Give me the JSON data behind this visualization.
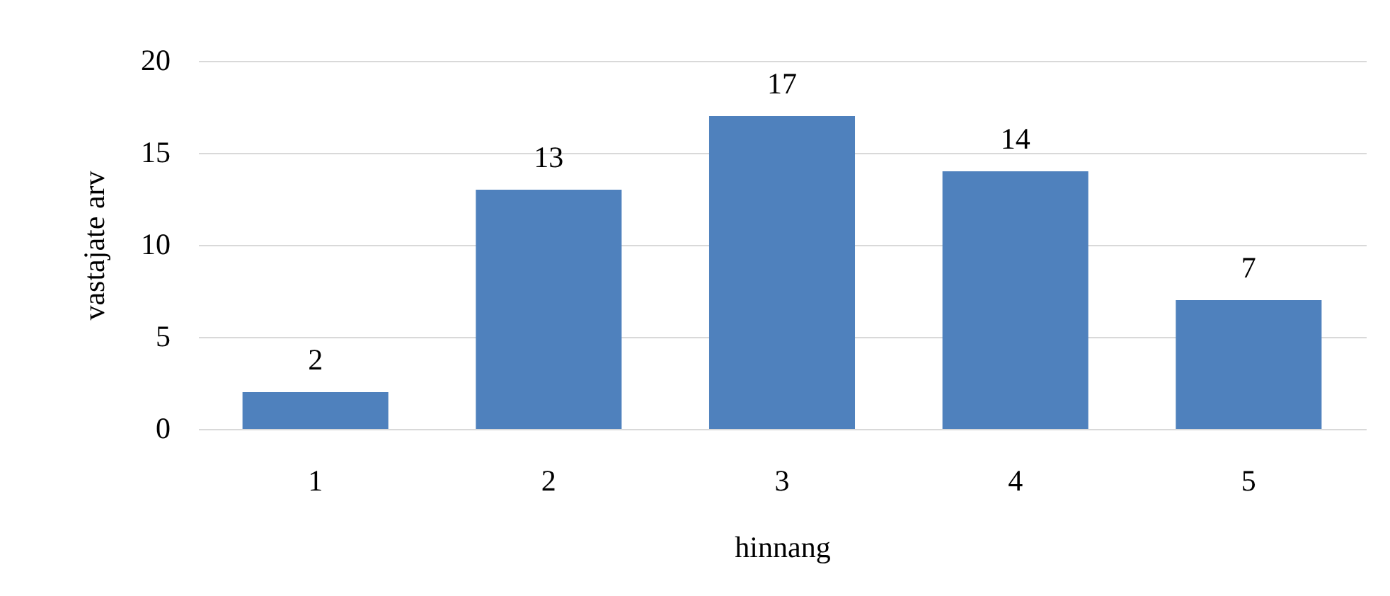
{
  "chart_data": {
    "type": "bar",
    "xlabel": "hinnang",
    "ylabel": "vastajate arv",
    "categories": [
      "1",
      "2",
      "3",
      "4",
      "5"
    ],
    "values": [
      2,
      13,
      17,
      14,
      7
    ],
    "color": "#4f81bd",
    "ylim": [
      0,
      20
    ],
    "yticks": [
      0,
      5,
      10,
      15,
      20
    ],
    "grid": "y",
    "data_labels": true
  }
}
